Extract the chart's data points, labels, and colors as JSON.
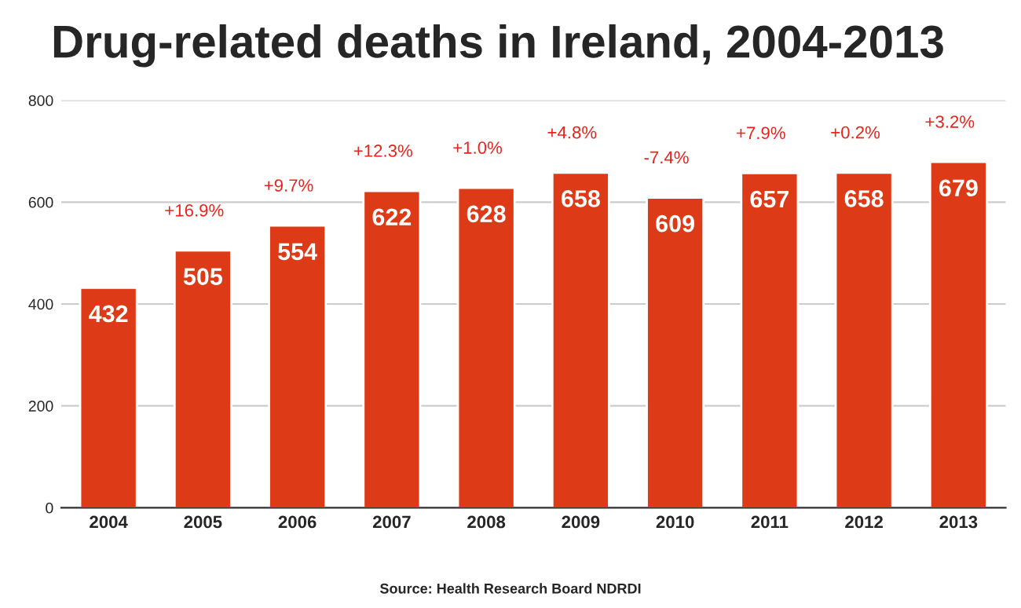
{
  "chart_data": {
    "type": "bar",
    "title": "Drug-related deaths in Ireland, 2004-2013",
    "categories": [
      "2004",
      "2005",
      "2006",
      "2007",
      "2008",
      "2009",
      "2010",
      "2011",
      "2012",
      "2013"
    ],
    "values": [
      432,
      505,
      554,
      622,
      628,
      658,
      609,
      657,
      658,
      679
    ],
    "color": "#dd3a17",
    "data_labels": true,
    "ylim": [
      0,
      800
    ],
    "yticks": [
      0,
      200,
      400,
      600,
      800
    ],
    "grid": "y",
    "annotations": [
      {
        "text": "+16.9%",
        "x": "2005",
        "y": 505
      },
      {
        "text": "+9.7%",
        "x": "2006",
        "y": 554
      },
      {
        "text": "+12.3%",
        "x": "2007",
        "y": 622
      },
      {
        "text": "+1.0%",
        "x": "2008",
        "y": 628
      },
      {
        "text": "+4.8%",
        "x": "2009",
        "y": 658
      },
      {
        "text": "-7.4%",
        "x": "2010",
        "y": 609
      },
      {
        "text": "+7.9%",
        "x": "2011",
        "y": 657
      },
      {
        "text": "+0.2%",
        "x": "2012",
        "y": 658
      },
      {
        "text": "+3.2%",
        "x": "2013",
        "y": 679
      },
      "Source: Health Research Board NDRDI"
    ]
  }
}
